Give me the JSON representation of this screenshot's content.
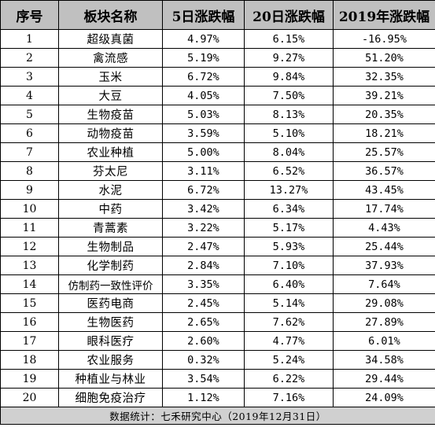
{
  "headers": [
    "序号",
    "板块名称",
    "5日涨跌幅",
    "20日涨跌幅",
    "2019年涨跌幅"
  ],
  "rows": [
    {
      "no": "1",
      "name": "超级真菌",
      "d5": "4.97%",
      "d20": "6.15%",
      "y2019": "-16.95%"
    },
    {
      "no": "2",
      "name": "禽流感",
      "d5": "5.19%",
      "d20": "9.27%",
      "y2019": "51.20%"
    },
    {
      "no": "3",
      "name": "玉米",
      "d5": "6.72%",
      "d20": "9.84%",
      "y2019": "32.35%"
    },
    {
      "no": "4",
      "name": "大豆",
      "d5": "4.05%",
      "d20": "7.50%",
      "y2019": "39.21%"
    },
    {
      "no": "5",
      "name": "生物疫苗",
      "d5": "5.03%",
      "d20": "8.13%",
      "y2019": "20.35%"
    },
    {
      "no": "6",
      "name": "动物疫苗",
      "d5": "3.59%",
      "d20": "5.10%",
      "y2019": "18.21%"
    },
    {
      "no": "7",
      "name": "农业种植",
      "d5": "5.00%",
      "d20": "8.04%",
      "y2019": "25.57%"
    },
    {
      "no": "8",
      "name": "芬太尼",
      "d5": "3.11%",
      "d20": "6.52%",
      "y2019": "36.57%"
    },
    {
      "no": "9",
      "name": "水泥",
      "d5": "6.72%",
      "d20": "13.27%",
      "y2019": "43.45%"
    },
    {
      "no": "10",
      "name": "中药",
      "d5": "3.42%",
      "d20": "6.34%",
      "y2019": "17.74%"
    },
    {
      "no": "11",
      "name": "青蒿素",
      "d5": "3.22%",
      "d20": "5.17%",
      "y2019": "4.43%"
    },
    {
      "no": "12",
      "name": "生物制品",
      "d5": "2.47%",
      "d20": "5.93%",
      "y2019": "25.44%"
    },
    {
      "no": "13",
      "name": "化学制药",
      "d5": "2.84%",
      "d20": "7.10%",
      "y2019": "37.93%"
    },
    {
      "no": "14",
      "name": "仿制药一致性评价",
      "d5": "3.35%",
      "d20": "6.40%",
      "y2019": "7.64%"
    },
    {
      "no": "15",
      "name": "医药电商",
      "d5": "2.45%",
      "d20": "5.14%",
      "y2019": "29.08%"
    },
    {
      "no": "16",
      "name": "生物医药",
      "d5": "2.65%",
      "d20": "7.62%",
      "y2019": "27.89%"
    },
    {
      "no": "17",
      "name": "眼科医疗",
      "d5": "2.60%",
      "d20": "4.77%",
      "y2019": "6.01%"
    },
    {
      "no": "18",
      "name": "农业服务",
      "d5": "0.32%",
      "d20": "5.24%",
      "y2019": "34.58%"
    },
    {
      "no": "19",
      "name": "种植业与林业",
      "d5": "3.54%",
      "d20": "6.22%",
      "y2019": "29.44%"
    },
    {
      "no": "20",
      "name": "细胞免疫治疗",
      "d5": "1.12%",
      "d20": "7.16%",
      "y2019": "24.09%"
    }
  ],
  "footer": "数据统计：七禾研究中心（2019年12月31日）"
}
